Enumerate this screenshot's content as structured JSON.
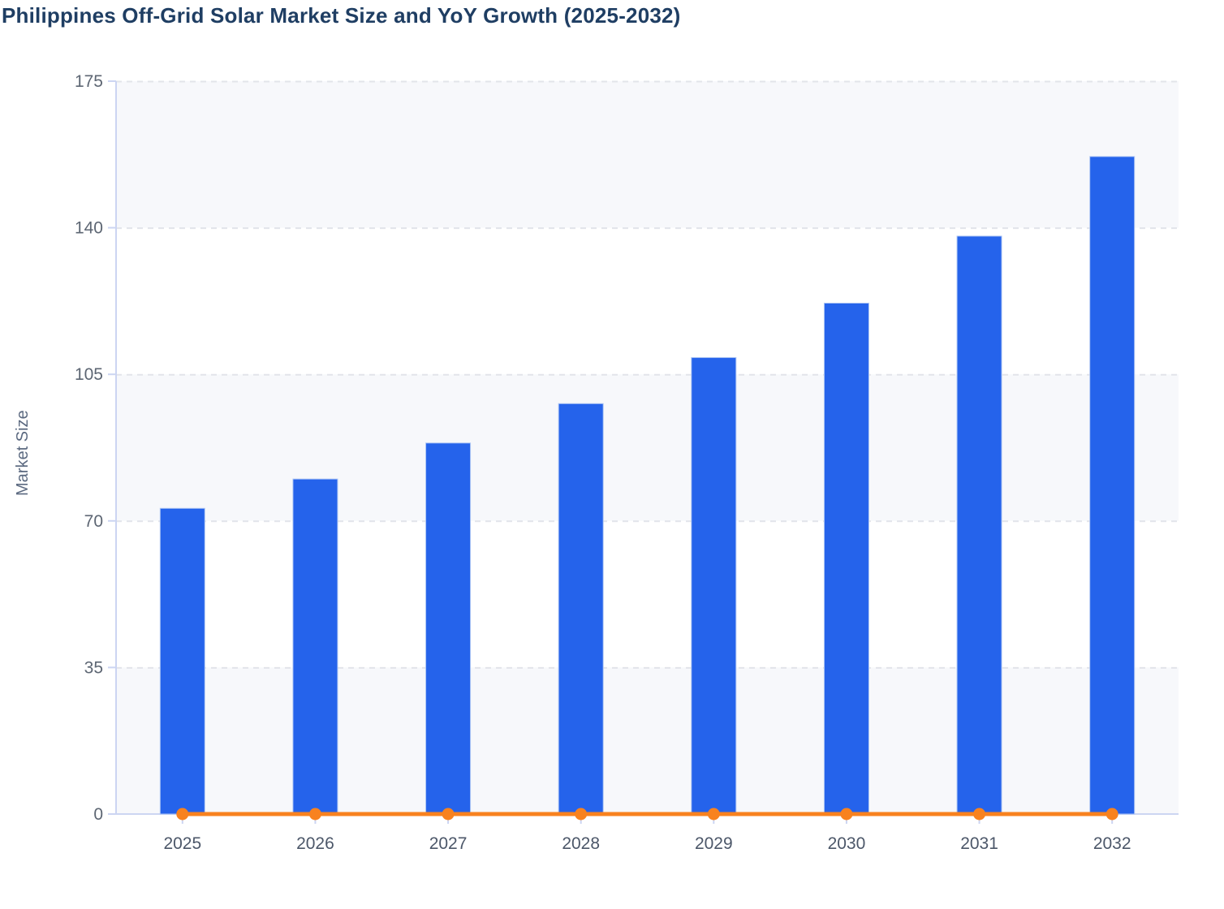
{
  "chart_data": {
    "type": "bar",
    "subtype": "vertical bars with flat overlay line (combo chart)",
    "title": "Philippines Off-Grid Solar Market Size and YoY Growth (2025-2032)",
    "categories": [
      "2025",
      "2026",
      "2027",
      "2028",
      "2029",
      "2030",
      "2031",
      "2032"
    ],
    "series": [
      {
        "name": "Market Size",
        "type": "bar",
        "values": [
          73,
          80,
          88.6,
          98,
          109,
          122,
          138,
          157
        ]
      },
      {
        "name": "YoY Growth",
        "type": "line",
        "values": [
          0,
          0,
          0,
          0,
          0,
          0,
          0,
          0
        ]
      }
    ],
    "xlabel": "",
    "ylabel": "Market Size",
    "ylim": [
      0,
      175
    ],
    "yticks": [
      0,
      35,
      70,
      105,
      140,
      175
    ],
    "legend": "none",
    "grid": "horizontal dashed gridlines with alternating shaded bands",
    "colors": {
      "bar_fill": "#2563eb",
      "bar_border": "#aec6f4",
      "line": "#f8821f",
      "marker": "#f8821f",
      "title_text": "#1f3e63",
      "axis_line": "#ccd5f2",
      "gridline": "#e2e4ea",
      "band_fill": "#f7f8fb",
      "y_tick_text": "#5d6673",
      "x_tick_text": "#4c5769",
      "axis_label_text": "#5b6980",
      "plot_background": "#ffffff"
    }
  }
}
